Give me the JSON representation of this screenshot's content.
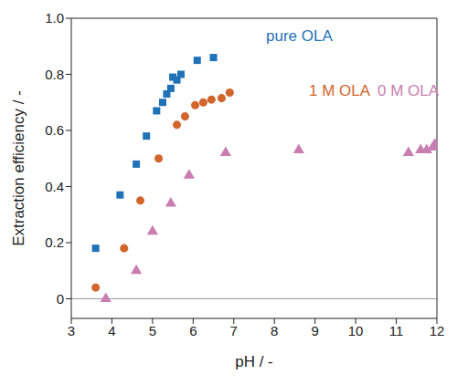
{
  "chart_data": {
    "type": "scatter",
    "x_label": "pH / -",
    "y_label": "Extraction efficiency / -",
    "xlim": [
      3,
      12
    ],
    "xticks": [
      3,
      4,
      5,
      6,
      7,
      8,
      9,
      10,
      11,
      12
    ],
    "ylim": [
      -0.07,
      1
    ],
    "yticks": [
      0,
      0.2,
      0.4,
      0.6,
      0.8,
      {
        "value": 1,
        "label": "1.0"
      }
    ],
    "grid": false,
    "series": [
      {
        "name": "pure OLA",
        "color": "#1f72b8",
        "marker": "square",
        "x": [
          3.6,
          4.2,
          4.6,
          4.85,
          5.1,
          5.25,
          5.35,
          5.45,
          5.5,
          5.6,
          5.7,
          6.1,
          6.5
        ],
        "values": [
          0.18,
          0.37,
          0.48,
          0.58,
          0.67,
          0.7,
          0.73,
          0.75,
          0.79,
          0.78,
          0.8,
          0.85,
          0.86
        ]
      },
      {
        "name": "1 M OLA",
        "color": "#d2652c",
        "marker": "circle",
        "x": [
          3.6,
          4.3,
          4.7,
          5.15,
          5.6,
          5.8,
          6.05,
          6.25,
          6.45,
          6.7,
          6.9
        ],
        "values": [
          0.04,
          0.18,
          0.35,
          0.5,
          0.62,
          0.65,
          0.69,
          0.7,
          0.71,
          0.715,
          0.735
        ]
      },
      {
        "name": "0 M OLA",
        "color": "#c97db2",
        "marker": "triangle",
        "x": [
          3.85,
          4.6,
          5.0,
          5.45,
          5.9,
          6.8,
          8.6,
          11.3,
          11.6,
          11.75,
          11.9,
          11.95
        ],
        "values": [
          0.0,
          0.1,
          0.24,
          0.34,
          0.44,
          0.52,
          0.53,
          0.52,
          0.53,
          0.53,
          0.54,
          0.55
        ]
      }
    ]
  }
}
